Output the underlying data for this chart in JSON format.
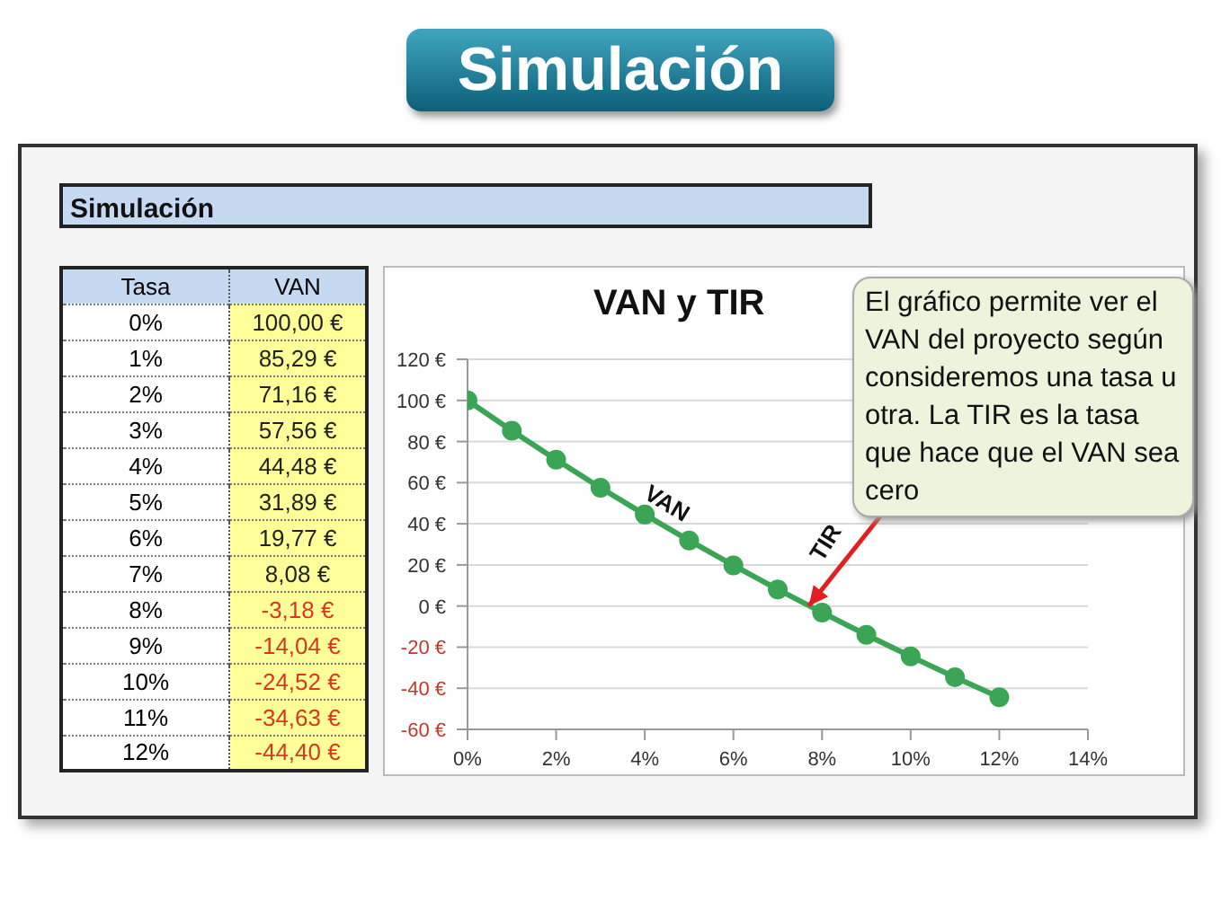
{
  "chart_data": {
    "type": "line",
    "title": "VAN y TIR",
    "x": [
      0,
      1,
      2,
      3,
      4,
      5,
      6,
      7,
      8,
      9,
      10,
      11,
      12
    ],
    "series": [
      {
        "name": "VAN",
        "color": "#3aa655",
        "values": [
          100,
          85.29,
          71.16,
          57.56,
          44.48,
          31.89,
          19.77,
          8.08,
          -3.18,
          -14.04,
          -24.52,
          -34.63,
          -44.4
        ]
      }
    ],
    "xlim": [
      0,
      14
    ],
    "xticks": [
      {
        "value": 0,
        "label": "0%"
      },
      {
        "value": 2,
        "label": "2%"
      },
      {
        "value": 4,
        "label": "4%"
      },
      {
        "value": 6,
        "label": "6%"
      },
      {
        "value": 8,
        "label": "8%"
      },
      {
        "value": 10,
        "label": "10%"
      },
      {
        "value": 12,
        "label": "12%"
      },
      {
        "value": 14,
        "label": "14%"
      }
    ],
    "ylim": [
      -60,
      120
    ],
    "yticks": [
      {
        "value": -60,
        "label": "-60 €"
      },
      {
        "value": -40,
        "label": "-40 €"
      },
      {
        "value": -20,
        "label": "-20 €"
      },
      {
        "value": 0,
        "label": "0 €"
      },
      {
        "value": 20,
        "label": "20 €"
      },
      {
        "value": 40,
        "label": "40 €"
      },
      {
        "value": 60,
        "label": "60 €"
      },
      {
        "value": 80,
        "label": "80 €"
      },
      {
        "value": 100,
        "label": "100 €"
      },
      {
        "value": 120,
        "label": "120 €"
      }
    ],
    "grid": "y",
    "legend": false,
    "marker": "circle",
    "line_style": "solid",
    "annotations": [
      "Simulación",
      "Simulación",
      "Tasa",
      "0%",
      "1%",
      "2%",
      "3%",
      "4%",
      "5%",
      "6%",
      "7%",
      "8%",
      "9%",
      "10%",
      "11%",
      "12%",
      "100,00 €",
      "85,29 €",
      "71,16 €",
      "57,56 €",
      "44,48 €",
      "31,89 €",
      "19,77 €",
      "8,08 €",
      "-3,18 €",
      "-14,04 €",
      "-24,52 €",
      "-34,63 €",
      "-44,40 €",
      "El gráfico permite ver el VAN del proyecto según consideremos una tasa u otra. La TIR es la tasa que hace que el VAN sea cero",
      {
        "text": "TIR",
        "x": 7.7,
        "y": 0
      }
    ]
  }
}
